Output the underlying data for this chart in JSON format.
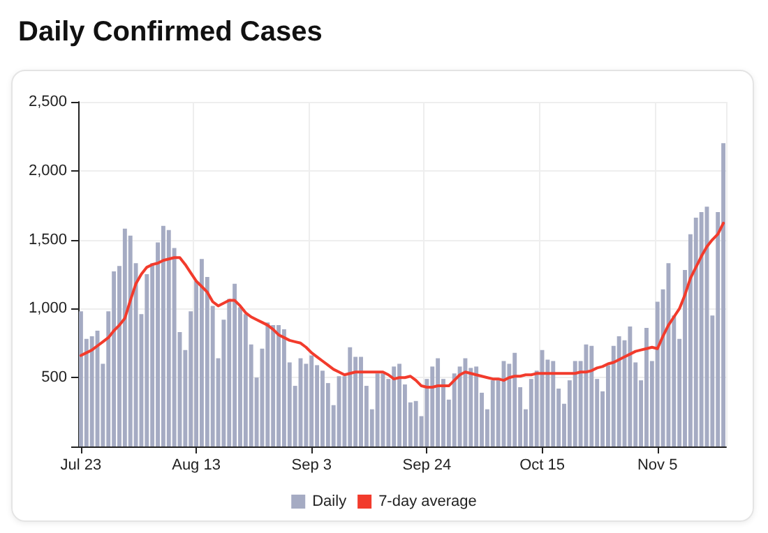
{
  "chart_data": {
    "type": "bar",
    "title": "Daily Confirmed Cases",
    "categories": [
      "Jul 23",
      null,
      null,
      null,
      null,
      null,
      null,
      null,
      null,
      null,
      null,
      null,
      null,
      null,
      null,
      null,
      null,
      null,
      null,
      null,
      null,
      "Aug 13",
      null,
      null,
      null,
      null,
      null,
      null,
      null,
      null,
      null,
      null,
      null,
      null,
      null,
      null,
      null,
      null,
      null,
      null,
      null,
      null,
      "Sep 3",
      null,
      null,
      null,
      null,
      null,
      null,
      null,
      null,
      null,
      null,
      null,
      null,
      null,
      null,
      null,
      null,
      null,
      null,
      null,
      null,
      "Sep 24",
      null,
      null,
      null,
      null,
      null,
      null,
      null,
      null,
      null,
      null,
      null,
      null,
      null,
      null,
      null,
      null,
      null,
      null,
      null,
      null,
      "Oct 15",
      null,
      null,
      null,
      null,
      null,
      null,
      null,
      null,
      null,
      null,
      null,
      null,
      null,
      null,
      null,
      null,
      null,
      null,
      null,
      null,
      "Nov 5",
      null,
      null,
      null,
      null,
      null,
      null,
      null,
      null,
      null,
      null,
      null,
      null
    ],
    "series": [
      {
        "name": "Daily",
        "color": "#a5abc3",
        "values": [
          980,
          780,
          800,
          840,
          600,
          980,
          1270,
          1310,
          1580,
          1530,
          1330,
          960,
          1250,
          1330,
          1480,
          1600,
          1570,
          1440,
          830,
          700,
          980,
          1200,
          1360,
          1230,
          1020,
          640,
          920,
          1070,
          1180,
          1010,
          960,
          740,
          500,
          710,
          900,
          880,
          880,
          850,
          610,
          440,
          640,
          600,
          660,
          590,
          550,
          460,
          300,
          510,
          510,
          720,
          650,
          650,
          440,
          270,
          530,
          530,
          490,
          580,
          600,
          450,
          320,
          330,
          220,
          490,
          580,
          640,
          490,
          340,
          530,
          580,
          640,
          570,
          580,
          390,
          270,
          480,
          480,
          620,
          600,
          680,
          430,
          270,
          490,
          550,
          700,
          630,
          620,
          420,
          310,
          480,
          620,
          620,
          740,
          730,
          490,
          400,
          590,
          730,
          800,
          770,
          870,
          610,
          480,
          860,
          620,
          1050,
          1140,
          1330,
          950,
          780,
          1280,
          1540,
          1660,
          1700,
          1740,
          950,
          1700,
          2200
        ]
      },
      {
        "name": "7-day average",
        "type": "line",
        "color": "#f23b2c",
        "values": [
          660,
          680,
          700,
          730,
          760,
          790,
          840,
          880,
          930,
          1060,
          1180,
          1250,
          1300,
          1320,
          1330,
          1350,
          1360,
          1370,
          1370,
          1320,
          1260,
          1200,
          1160,
          1120,
          1050,
          1020,
          1040,
          1060,
          1060,
          1020,
          970,
          940,
          920,
          900,
          880,
          850,
          810,
          790,
          770,
          760,
          750,
          720,
          680,
          650,
          620,
          590,
          560,
          540,
          520,
          530,
          540,
          540,
          540,
          540,
          540,
          540,
          520,
          490,
          500,
          500,
          510,
          480,
          440,
          430,
          430,
          440,
          440,
          440,
          480,
          520,
          540,
          530,
          520,
          510,
          500,
          490,
          490,
          480,
          500,
          510,
          510,
          520,
          520,
          530,
          530,
          530,
          530,
          530,
          530,
          530,
          530,
          540,
          540,
          550,
          570,
          580,
          600,
          610,
          630,
          650,
          670,
          690,
          700,
          710,
          720,
          710,
          800,
          880,
          940,
          1000,
          1100,
          1220,
          1300,
          1380,
          1450,
          1500,
          1540,
          1620
        ]
      }
    ],
    "ylim": [
      0,
      2500
    ],
    "yticks": [
      {
        "value": 0,
        "label": null
      },
      500,
      {
        "value": 1000,
        "label": "1,000"
      },
      {
        "value": 1500,
        "label": "1,500"
      },
      {
        "value": 2000,
        "label": "2,000"
      },
      {
        "value": 2500,
        "label": "2,500"
      }
    ],
    "grid": true,
    "legend": "bottom",
    "marker": "none",
    "line_style": "solid"
  }
}
